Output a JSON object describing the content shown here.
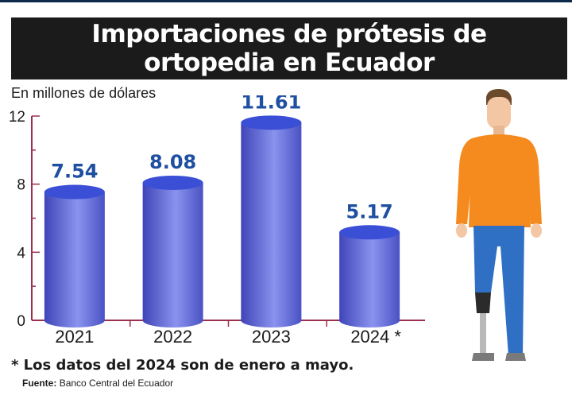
{
  "title_line1": "Importaciones de prótesis de",
  "title_line2": "ortopedia en Ecuador",
  "units_label": "En millones de dólares",
  "footnote": "* Los datos del 2024 son de enero a mayo.",
  "source_label": "Fuente:",
  "source_text": "Banco Central del Ecuador",
  "colors": {
    "bar_top": "#3a4fd6",
    "bar_body_dark": "#3f45b8",
    "bar_body_light": "#8a93ee",
    "value_label": "#1f4fa0",
    "axis": "#9b2f4e"
  },
  "chart_data": {
    "type": "bar",
    "categories": [
      "2021",
      "2022",
      "2023",
      "2024 *"
    ],
    "values": [
      7.54,
      8.08,
      11.61,
      5.17
    ],
    "data_labels": [
      "7.54",
      "8.08",
      "11.61",
      "5.17"
    ],
    "title": "Importaciones de prótesis de ortopedia en Ecuador",
    "xlabel": "",
    "ylabel": "En millones de dólares",
    "ylim": [
      0,
      12
    ],
    "yticks": [
      0,
      4,
      8,
      12
    ],
    "grid": false,
    "legend": "none"
  }
}
